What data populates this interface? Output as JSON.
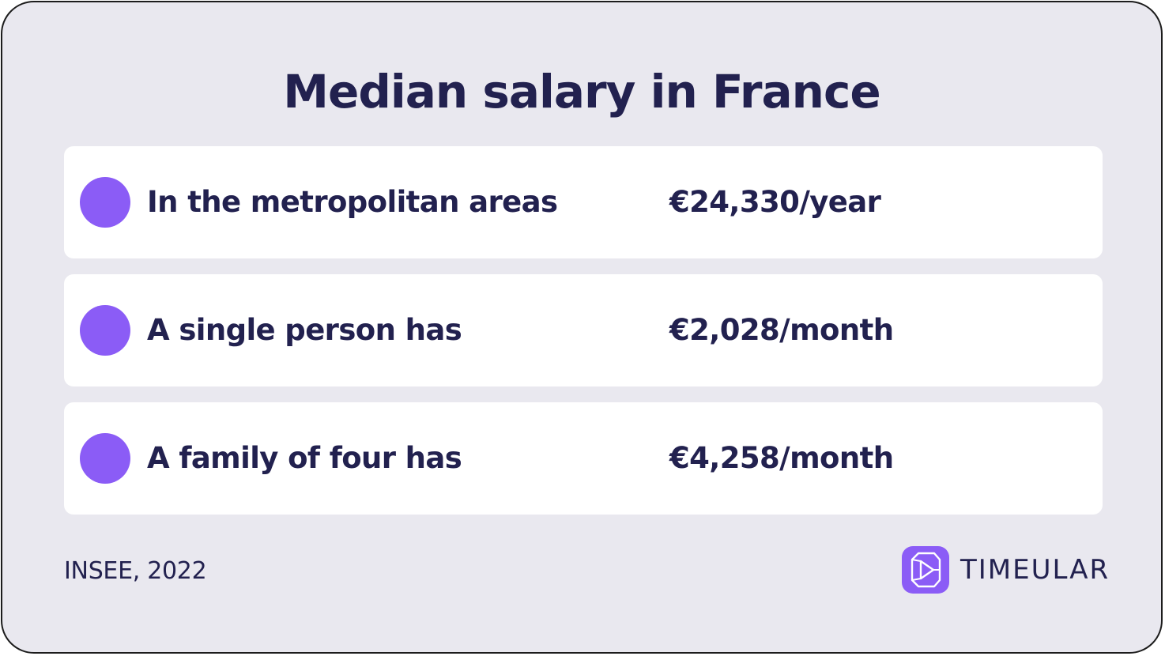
{
  "title": "Median salary in France",
  "rows": [
    {
      "label": "In the metropolitan areas",
      "value": "€24,330/year"
    },
    {
      "label": "A single person has",
      "value": "€2,028/month"
    },
    {
      "label": "A family of four has",
      "value": "€4,258/month"
    }
  ],
  "source": "INSEE, 2022",
  "brand": {
    "name": "TIMEULAR",
    "logo_icon": "timeular-logo-icon"
  },
  "colors": {
    "background": "#e9e8ef",
    "text": "#22214f",
    "accent": "#8b5cf6",
    "row_background": "#ffffff"
  }
}
